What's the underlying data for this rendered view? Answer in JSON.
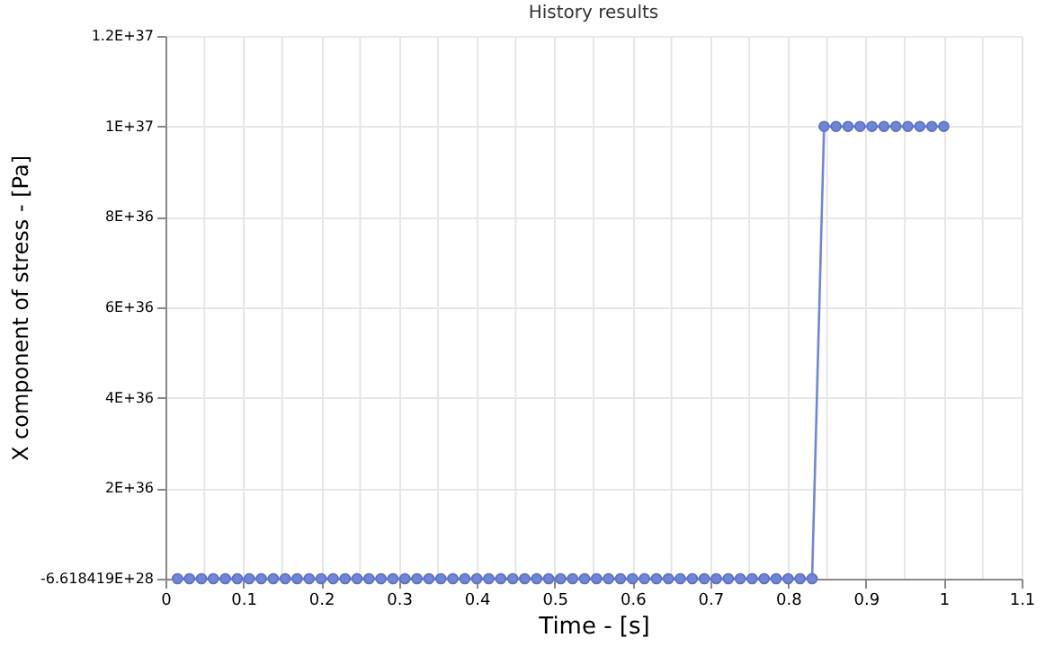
{
  "chart_data": {
    "type": "line",
    "title": "History results",
    "xlabel": "Time - [s]",
    "ylabel": "X component of stress - [Pa]",
    "x": [
      0.0154,
      0.0308,
      0.0462,
      0.0615,
      0.0769,
      0.0923,
      0.1077,
      0.1231,
      0.1385,
      0.1538,
      0.1692,
      0.1846,
      0.2,
      0.2154,
      0.2308,
      0.2462,
      0.2615,
      0.2769,
      0.2923,
      0.3077,
      0.3231,
      0.3385,
      0.3538,
      0.3692,
      0.3846,
      0.4,
      0.4154,
      0.4308,
      0.4462,
      0.4615,
      0.4769,
      0.4923,
      0.5077,
      0.5231,
      0.5385,
      0.5538,
      0.5692,
      0.5846,
      0.6,
      0.6154,
      0.6308,
      0.6462,
      0.6615,
      0.6769,
      0.6923,
      0.7077,
      0.7231,
      0.7385,
      0.7538,
      0.7692,
      0.7846,
      0.8,
      0.8154,
      0.8308,
      0.8462,
      0.8615,
      0.8769,
      0.8923,
      0.9077,
      0.9231,
      0.9385,
      0.9538,
      0.9692,
      0.9846,
      1.0
    ],
    "series": [
      {
        "color": "#6f86d8",
        "values": [
          -6.618419e+28,
          -6.618419e+28,
          -6.618419e+28,
          -6.618419e+28,
          -6.618419e+28,
          -6.618419e+28,
          -6.618419e+28,
          -6.618419e+28,
          -6.618419e+28,
          -6.618419e+28,
          -6.618419e+28,
          -6.618419e+28,
          -6.618419e+28,
          -6.618419e+28,
          -6.618419e+28,
          -6.618419e+28,
          -6.618419e+28,
          -6.618419e+28,
          -6.618419e+28,
          -6.618419e+28,
          -6.618419e+28,
          -6.618419e+28,
          -6.618419e+28,
          -6.618419e+28,
          -6.618419e+28,
          -6.618419e+28,
          -6.618419e+28,
          -6.618419e+28,
          -6.618419e+28,
          -6.618419e+28,
          -6.618419e+28,
          -6.618419e+28,
          -6.618419e+28,
          -6.618419e+28,
          -6.618419e+28,
          -6.618419e+28,
          -6.618419e+28,
          -6.618419e+28,
          -6.618419e+28,
          -6.618419e+28,
          -6.618419e+28,
          -6.618419e+28,
          -6.618419e+28,
          -6.618419e+28,
          -6.618419e+28,
          -6.618419e+28,
          -6.618419e+28,
          -6.618419e+28,
          -6.618419e+28,
          -6.618419e+28,
          -6.618419e+28,
          -6.618419e+28,
          -6.618419e+28,
          -6.618419e+28,
          1e+37,
          1e+37,
          1e+37,
          1e+37,
          1e+37,
          1e+37,
          1e+37,
          1e+37,
          1e+37,
          1e+37,
          1e+37
        ]
      }
    ],
    "xlim": [
      0,
      1.1
    ],
    "xticks": [
      0,
      {
        "value": 0.05,
        "label": null
      },
      0.1,
      {
        "value": 0.15,
        "label": null
      },
      0.2,
      {
        "value": 0.25,
        "label": null
      },
      0.3,
      {
        "value": 0.35,
        "label": null
      },
      0.4,
      {
        "value": 0.45,
        "label": null
      },
      0.5,
      {
        "value": 0.55,
        "label": null
      },
      0.6,
      {
        "value": 0.65,
        "label": null
      },
      0.7,
      {
        "value": 0.75,
        "label": null
      },
      0.8,
      {
        "value": 0.85,
        "label": null
      },
      0.9,
      {
        "value": 0.95,
        "label": null
      },
      1,
      {
        "value": 1.05,
        "label": null
      },
      1.1
    ],
    "ylim": [
      -6.618419e+28,
      1.2e+37
    ],
    "yticks": [
      {
        "value": -6.618419e+28,
        "label": "-6.618419E+28"
      },
      {
        "value": 2e+36,
        "label": "2E+36"
      },
      {
        "value": 4e+36,
        "label": "4E+36"
      },
      {
        "value": 6e+36,
        "label": "6E+36"
      },
      {
        "value": 8e+36,
        "label": "8E+36"
      },
      {
        "value": 1e+37,
        "label": "1E+37"
      },
      {
        "value": 1.2e+37,
        "label": "1.2E+37"
      }
    ],
    "grid": true,
    "marker": "circle",
    "line_style": "solid",
    "legend": false
  }
}
